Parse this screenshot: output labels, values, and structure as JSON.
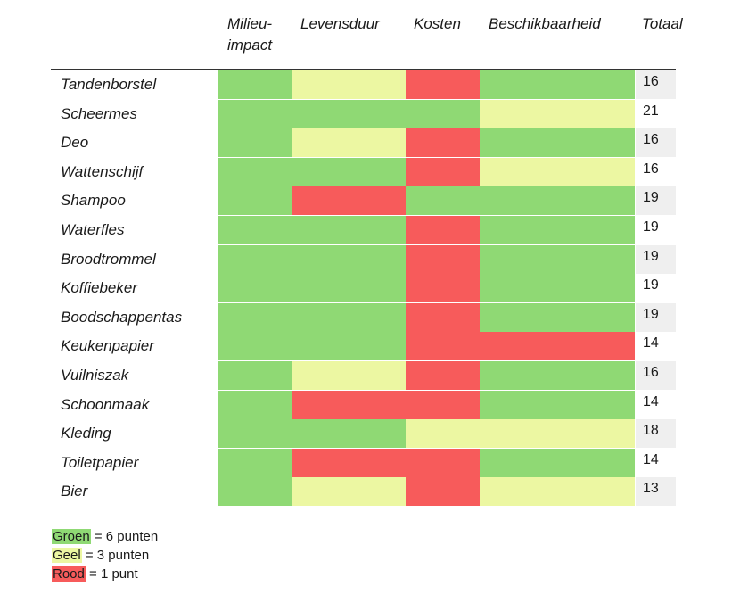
{
  "columns": [
    "Milieu-",
    "impact",
    "Levensduur",
    "Kosten",
    "Beschikbaarheid",
    "Totaal"
  ],
  "colors": {
    "groen": "#8fd974",
    "geel": "#ecf7a2",
    "rood": "#f75b5b"
  },
  "rows": [
    {
      "name": "Tandenborstel",
      "scores": [
        "groen",
        "geel",
        "rood",
        "groen"
      ],
      "total": "16"
    },
    {
      "name": "Scheermes",
      "scores": [
        "groen",
        "groen",
        "groen",
        "geel"
      ],
      "total": "21"
    },
    {
      "name": "Deo",
      "scores": [
        "groen",
        "geel",
        "rood",
        "groen"
      ],
      "total": "16"
    },
    {
      "name": "Wattenschijf",
      "scores": [
        "groen",
        "groen",
        "rood",
        "geel"
      ],
      "total": "16"
    },
    {
      "name": "Shampoo",
      "scores": [
        "groen",
        "rood",
        "groen",
        "groen"
      ],
      "total": "19"
    },
    {
      "name": "Waterfles",
      "scores": [
        "groen",
        "groen",
        "rood",
        "groen"
      ],
      "total": "19"
    },
    {
      "name": "Broodtrommel",
      "scores": [
        "groen",
        "groen",
        "rood",
        "groen"
      ],
      "total": "19"
    },
    {
      "name": "Koffiebeker",
      "scores": [
        "groen",
        "groen",
        "rood",
        "groen"
      ],
      "total": "19"
    },
    {
      "name": "Boodschappentas",
      "scores": [
        "groen",
        "groen",
        "rood",
        "groen"
      ],
      "total": "19"
    },
    {
      "name": "Keukenpapier",
      "scores": [
        "groen",
        "groen",
        "rood",
        "rood"
      ],
      "total": "14"
    },
    {
      "name": "Vuilniszak",
      "scores": [
        "groen",
        "geel",
        "rood",
        "groen"
      ],
      "total": "16"
    },
    {
      "name": "Schoonmaak",
      "scores": [
        "groen",
        "rood",
        "rood",
        "groen"
      ],
      "total": "14"
    },
    {
      "name": "Kleding",
      "scores": [
        "groen",
        "groen",
        "geel",
        "geel"
      ],
      "total": "18"
    },
    {
      "name": "Toiletpapier",
      "scores": [
        "groen",
        "rood",
        "rood",
        "groen"
      ],
      "total": "14"
    },
    {
      "name": "Bier",
      "scores": [
        "groen",
        "geel",
        "rood",
        "geel"
      ],
      "total": "13"
    }
  ],
  "legend": [
    {
      "word": "Groen",
      "rest": " = 6 punten",
      "color": "groen"
    },
    {
      "word": "Geel",
      "rest": " = 3 punten",
      "color": "geel"
    },
    {
      "word": "Rood",
      "rest": " = 1 punt",
      "color": "rood"
    }
  ]
}
